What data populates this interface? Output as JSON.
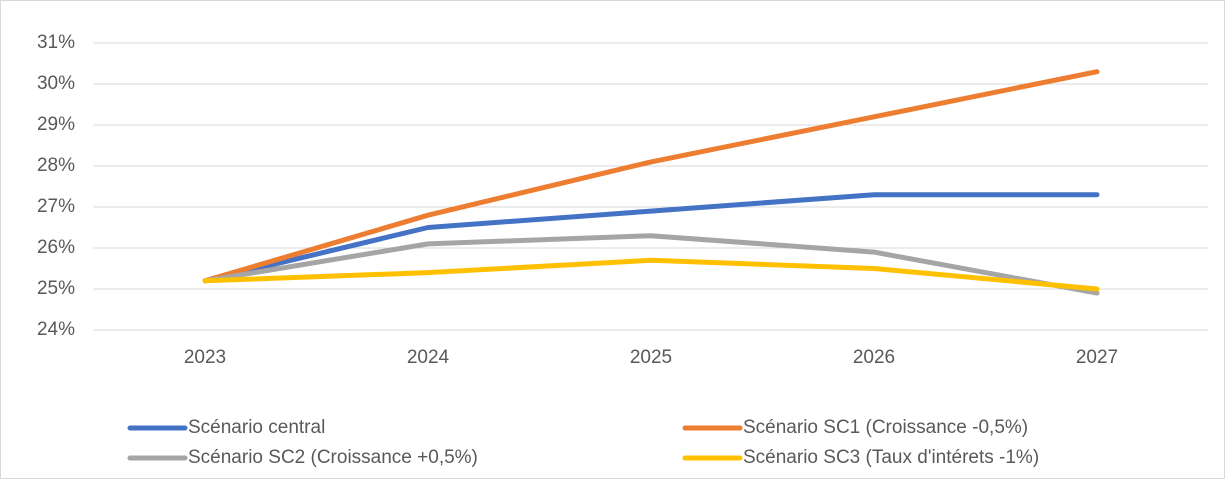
{
  "chart_data": {
    "type": "line",
    "categories": [
      "2023",
      "2024",
      "2025",
      "2026",
      "2027"
    ],
    "series": [
      {
        "name": "Scénario central",
        "color": "#4472c4",
        "values": [
          25.2,
          26.5,
          26.9,
          27.3,
          27.3
        ]
      },
      {
        "name": "Scénario SC1 (Croissance -0,5%)",
        "color": "#ed7d31",
        "values": [
          25.2,
          26.8,
          28.1,
          29.2,
          30.3
        ]
      },
      {
        "name": "Scénario SC2 (Croissance +0,5%)",
        "color": "#a5a5a5",
        "values": [
          25.2,
          26.1,
          26.3,
          25.9,
          24.9
        ]
      },
      {
        "name": "Scénario SC3 (Taux d'intérets -1%)",
        "color": "#ffc000",
        "values": [
          25.2,
          25.4,
          25.7,
          25.5,
          25.0
        ]
      }
    ],
    "ylim": [
      24,
      31
    ],
    "yticks": [
      {
        "value": 24,
        "label": "24%"
      },
      {
        "value": 25,
        "label": "25%"
      },
      {
        "value": 26,
        "label": "26%"
      },
      {
        "value": 27,
        "label": "27%"
      },
      {
        "value": 28,
        "label": "28%"
      },
      {
        "value": 29,
        "label": "29%"
      },
      {
        "value": 30,
        "label": "30%"
      },
      {
        "value": 31,
        "label": "31%"
      }
    ],
    "grid": true,
    "legend": "bottom"
  }
}
